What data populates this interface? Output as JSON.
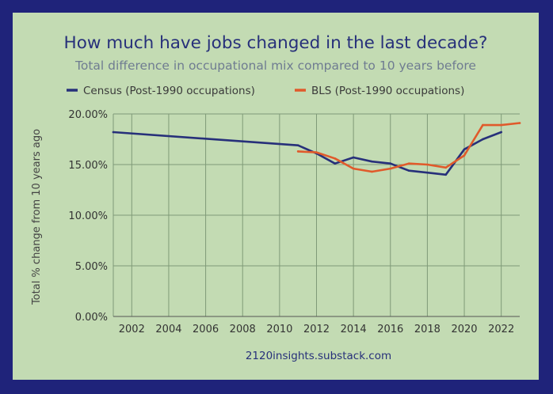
{
  "chart_data": {
    "type": "line",
    "title": "How much have jobs changed in the last decade?",
    "subtitle": "Total difference in occupational mix compared to 10 years before",
    "xlabel": "",
    "ylabel": "Total % change from 10 years ago",
    "xlim": [
      2001,
      2023
    ],
    "ylim": [
      0,
      20
    ],
    "x_ticks": [
      2002,
      2004,
      2006,
      2008,
      2010,
      2012,
      2014,
      2016,
      2018,
      2020,
      2022
    ],
    "x_tick_labels": [
      "2002",
      "2004",
      "2006",
      "2008",
      "2010",
      "2012",
      "2014",
      "2016",
      "2018",
      "2020",
      "2022"
    ],
    "y_ticks": [
      0,
      5,
      10,
      15,
      20
    ],
    "y_tick_labels": [
      "0.00%",
      "5.00%",
      "10.00%",
      "15.00%",
      "20.00%"
    ],
    "grid": true,
    "legend_position": "top",
    "series": [
      {
        "name": "Census (Post-1990 occupations)",
        "color": "#27307a",
        "x": [
          2001,
          2011,
          2012,
          2013,
          2014,
          2015,
          2016,
          2017,
          2018,
          2019,
          2020,
          2021,
          2022
        ],
        "values": [
          18.2,
          16.9,
          16.1,
          15.1,
          15.7,
          15.3,
          15.1,
          14.4,
          14.2,
          14.0,
          16.5,
          17.5,
          18.2
        ]
      },
      {
        "name": "BLS (Post-1990 occupations)",
        "color": "#e05a2b",
        "x": [
          2011,
          2012,
          2013,
          2014,
          2015,
          2016,
          2017,
          2018,
          2019,
          2020,
          2021,
          2022,
          2023
        ],
        "values": [
          16.3,
          16.2,
          15.6,
          14.6,
          14.3,
          14.6,
          15.1,
          15.0,
          14.7,
          15.9,
          18.9,
          18.9,
          19.1
        ]
      }
    ]
  },
  "source": "2120insights.substack.com"
}
